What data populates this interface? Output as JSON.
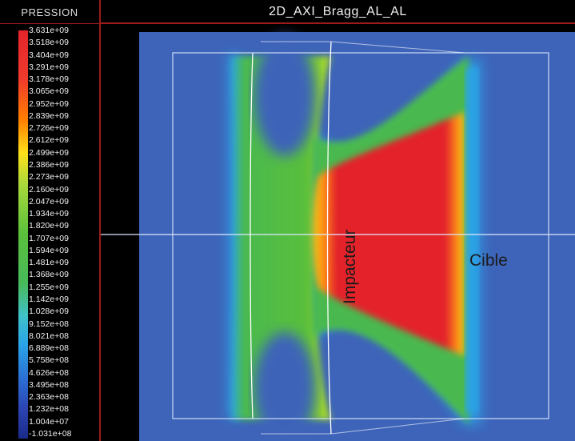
{
  "legend": {
    "title": "PRESSION",
    "ticks": [
      "3.631e+09",
      "3.518e+09",
      "3.404e+09",
      "3.291e+09",
      "3.178e+09",
      "3.065e+09",
      "2.952e+09",
      "2.839e+09",
      "2.726e+09",
      "2.612e+09",
      "2.499e+09",
      "2.386e+09",
      "2.273e+09",
      "2.160e+09",
      "2.047e+09",
      "1.934e+09",
      "1.820e+09",
      "1.707e+09",
      "1.594e+09",
      "1.481e+09",
      "1.368e+09",
      "1.255e+09",
      "1.142e+09",
      "1.028e+09",
      "9.152e+08",
      "8.021e+08",
      "6.889e+08",
      "5.758e+08",
      "4.626e+08",
      "3.495e+08",
      "2.363e+08",
      "1.232e+08",
      "1.004e+07",
      "-1.031e+08"
    ]
  },
  "view": {
    "title": "2D_AXI_Bragg_AL_AL"
  },
  "regions": {
    "impactor_label": "Impacteur",
    "target_label": "Cible"
  },
  "colors": {
    "background_field": "#3e64b9",
    "high_pressure": "#e3242b",
    "medium_pressure": "#4ab94f",
    "low_pressure": "#2aa4e8",
    "frame_accent": "#9b1b1b"
  }
}
